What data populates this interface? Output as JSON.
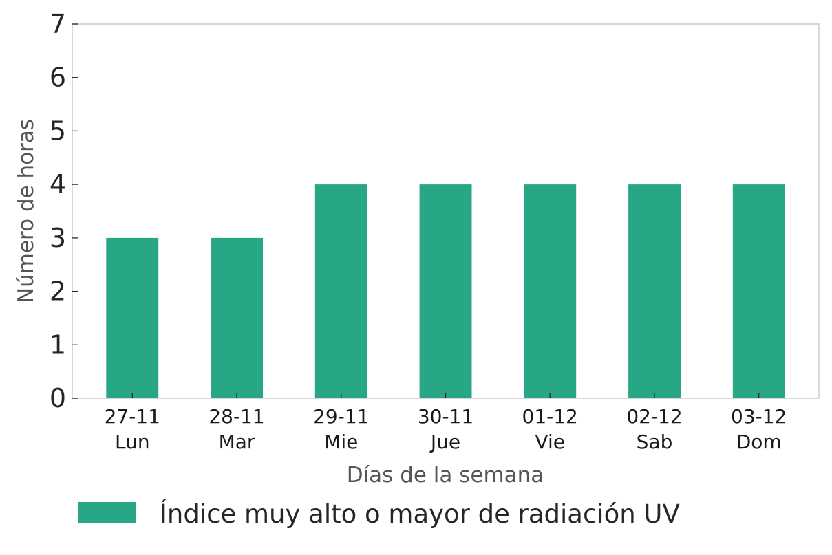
{
  "chart_data": {
    "type": "bar",
    "categories": [
      {
        "date": "27-11",
        "day": "Lun"
      },
      {
        "date": "28-11",
        "day": "Mar"
      },
      {
        "date": "29-11",
        "day": "Mie"
      },
      {
        "date": "30-11",
        "day": "Jue"
      },
      {
        "date": "01-12",
        "day": "Vie"
      },
      {
        "date": "02-12",
        "day": "Sab"
      },
      {
        "date": "03-12",
        "day": "Dom"
      }
    ],
    "series": [
      {
        "name": "Índice muy alto o mayor de radiación UV",
        "values": [
          3,
          3,
          4,
          4,
          4,
          4,
          4
        ],
        "color": "#28a786"
      }
    ],
    "xlabel": "Días de la semana",
    "ylabel": "Número de horas",
    "ylim": [
      0,
      7
    ],
    "yticks": [
      0,
      1,
      2,
      3,
      4,
      5,
      6,
      7
    ],
    "grid": false,
    "legend_position": "bottom-left"
  }
}
